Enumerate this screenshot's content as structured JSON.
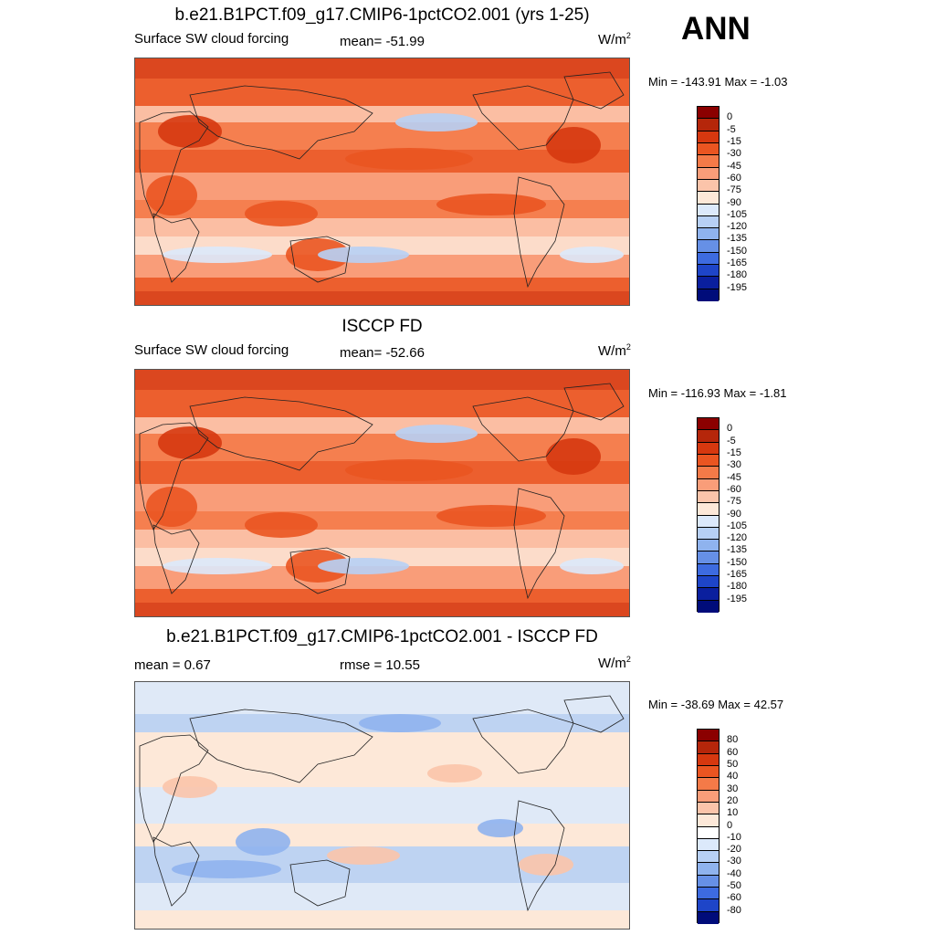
{
  "season": "ANN",
  "panels": [
    {
      "title": "b.e21.B1PCT.f09_g17.CMIP6-1pctCO2.001 (yrs 1-25)",
      "left_label": "Surface SW cloud forcing",
      "center_label": "mean= -51.99",
      "units": "W/m",
      "units_sup": "2",
      "minmax": "Min = -143.91 Max =  -1.03",
      "colorbar_labels": [
        "0",
        "-5",
        "-15",
        "-30",
        "-45",
        "-60",
        "-75",
        "-90",
        "-105",
        "-120",
        "-135",
        "-150",
        "-165",
        "-180",
        "-195"
      ],
      "colorbar_colors": [
        "#8b0000",
        "#b5260a",
        "#d6380f",
        "#ea5521",
        "#f47a48",
        "#f99d79",
        "#fbc4aa",
        "#fde8d8",
        "#dce9fb",
        "#b7d0f5",
        "#8fb3ee",
        "#6690e6",
        "#3d6be0",
        "#1e45c8",
        "#0a1f9e",
        "#000c7a"
      ],
      "field": "model"
    },
    {
      "title": "ISCCP FD",
      "left_label": "Surface SW cloud forcing",
      "center_label": "mean= -52.66",
      "units": "W/m",
      "units_sup": "2",
      "minmax": "Min = -116.93 Max =  -1.81",
      "colorbar_labels": [
        "0",
        "-5",
        "-15",
        "-30",
        "-45",
        "-60",
        "-75",
        "-90",
        "-105",
        "-120",
        "-135",
        "-150",
        "-165",
        "-180",
        "-195"
      ],
      "colorbar_colors": [
        "#8b0000",
        "#b5260a",
        "#d6380f",
        "#ea5521",
        "#f47a48",
        "#f99d79",
        "#fbc4aa",
        "#fde8d8",
        "#dce9fb",
        "#b7d0f5",
        "#8fb3ee",
        "#6690e6",
        "#3d6be0",
        "#1e45c8",
        "#0a1f9e",
        "#000c7a"
      ],
      "field": "obs"
    },
    {
      "title": "b.e21.B1PCT.f09_g17.CMIP6-1pctCO2.001 - ISCCP FD",
      "left_label": "mean =   0.67",
      "center_label": "rmse =  10.55",
      "units": "W/m",
      "units_sup": "2",
      "minmax": "Min = -38.69 Max =  42.57",
      "colorbar_labels": [
        "80",
        "60",
        "50",
        "40",
        "30",
        "20",
        "10",
        "0",
        "-10",
        "-20",
        "-30",
        "-40",
        "-50",
        "-60",
        "-80"
      ],
      "colorbar_colors": [
        "#8b0000",
        "#b5260a",
        "#d6380f",
        "#ea5521",
        "#f47a48",
        "#f99d79",
        "#fbc4aa",
        "#fde8d8",
        "#ffffff",
        "#dce9fb",
        "#b7d0f5",
        "#8fb3ee",
        "#6690e6",
        "#3d6be0",
        "#1e45c8",
        "#000c7a"
      ],
      "field": "diff"
    }
  ]
}
